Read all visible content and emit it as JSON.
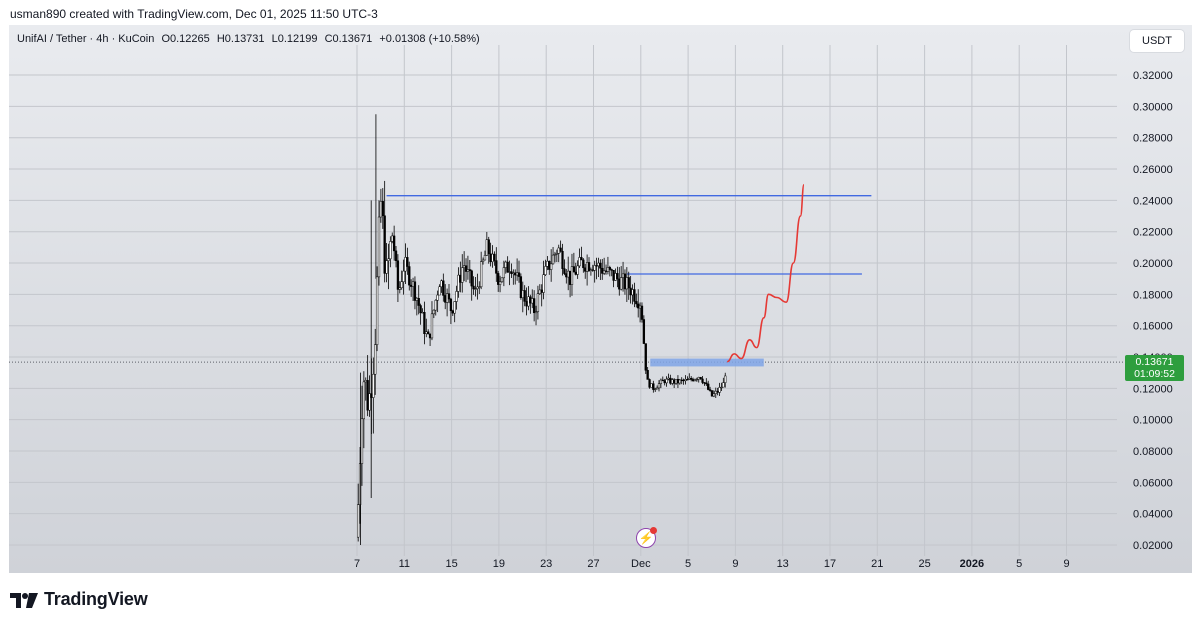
{
  "credit": "usman890 created with TradingView.com, Dec 01, 2025 11:50 UTC-3",
  "legend": {
    "symbol": "UnifAI / Tether · 4h · KuCoin",
    "open": "O0.12265",
    "high": "H0.13731",
    "low": "L0.12199",
    "close": "C0.13671",
    "change": "+0.01308 (+10.58%)"
  },
  "currency_button": "USDT",
  "price_badge": {
    "price": "0.13671",
    "countdown": "01:09:52"
  },
  "brand": "TradingView",
  "icons": [
    "tradingview-logo-icon",
    "lightning-event-icon"
  ],
  "colors": {
    "candle": "#000000",
    "level_line": "#4169e1",
    "zone": "#7fa4e6",
    "projection": "#e53935",
    "price_badge": "#2e9e3e"
  },
  "chart_data": {
    "type": "candlestick",
    "x_ticks": [
      "7",
      "11",
      "15",
      "19",
      "23",
      "27",
      "Dec",
      "5",
      "9",
      "13",
      "17",
      "21",
      "25",
      "2026",
      "5",
      "9"
    ],
    "y_ticks": [
      "0.32000",
      "0.30000",
      "0.28000",
      "0.26000",
      "0.24000",
      "0.22000",
      "0.20000",
      "0.18000",
      "0.16000",
      "0.14000",
      "0.12000",
      "0.10000",
      "0.08000",
      "0.06000",
      "0.04000",
      "0.02000"
    ],
    "ylim": [
      0.02,
      0.32
    ],
    "current_price": 0.13671,
    "price_path": [
      [
        0,
        0.025
      ],
      [
        0.5,
        0.13
      ],
      [
        1,
        0.11
      ],
      [
        1.5,
        0.15
      ],
      [
        2,
        0.24
      ],
      [
        2.5,
        0.19
      ],
      [
        3,
        0.22
      ],
      [
        3.5,
        0.18
      ],
      [
        4,
        0.2
      ],
      [
        5,
        0.18
      ],
      [
        6,
        0.15
      ],
      [
        7,
        0.19
      ],
      [
        8,
        0.17
      ],
      [
        9,
        0.2
      ],
      [
        10,
        0.18
      ],
      [
        11,
        0.21
      ],
      [
        12,
        0.19
      ],
      [
        13,
        0.2
      ],
      [
        14,
        0.18
      ],
      [
        15,
        0.17
      ],
      [
        16,
        0.195
      ],
      [
        17,
        0.21
      ],
      [
        18,
        0.19
      ],
      [
        19,
        0.2
      ],
      [
        20,
        0.2
      ],
      [
        21,
        0.195
      ],
      [
        22,
        0.19
      ],
      [
        23,
        0.185
      ],
      [
        23.5,
        0.18
      ],
      [
        24,
        0.175
      ],
      [
        24.5,
        0.125
      ],
      [
        25,
        0.12
      ],
      [
        26,
        0.125
      ],
      [
        27,
        0.124
      ],
      [
        28,
        0.125
      ],
      [
        29,
        0.128
      ],
      [
        29.5,
        0.122
      ],
      [
        30,
        0.115
      ],
      [
        30.5,
        0.118
      ],
      [
        31,
        0.123
      ],
      [
        31.3,
        0.137
      ]
    ],
    "horizontal_lines": [
      {
        "price": 0.243,
        "from": 2.5,
        "to": 43.5
      },
      {
        "price": 0.193,
        "from": 22.8,
        "to": 42.7
      }
    ],
    "zone": {
      "from": 24.8,
      "to": 34.4,
      "low": 0.134,
      "high": 0.139
    },
    "projection": [
      [
        31.3,
        0.137
      ],
      [
        31.9,
        0.142
      ],
      [
        32.5,
        0.139
      ],
      [
        33.2,
        0.151
      ],
      [
        33.8,
        0.146
      ],
      [
        34.4,
        0.165
      ],
      [
        34.8,
        0.18
      ],
      [
        35.5,
        0.178
      ],
      [
        36.3,
        0.175
      ],
      [
        36.9,
        0.2
      ],
      [
        37.5,
        0.23
      ],
      [
        37.8,
        0.25
      ]
    ]
  }
}
